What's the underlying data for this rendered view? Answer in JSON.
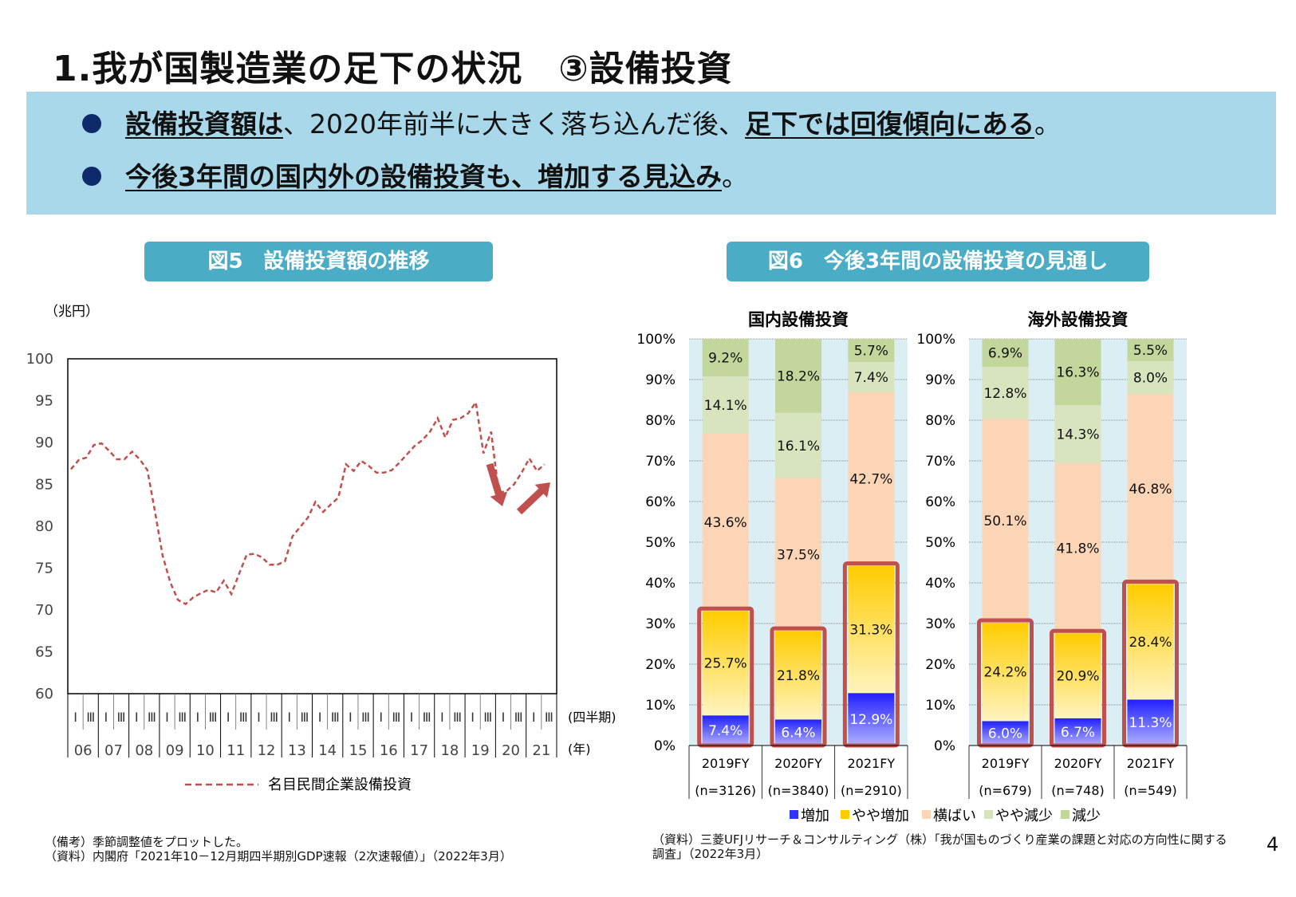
{
  "title": "1.我が国製造業の足下の状況　③設備投資",
  "bullets": [
    {
      "b1": "設備投資額は",
      "t1": "、2020年前半に大きく落ち込んだ後、",
      "b2": "足下では回復傾向にある",
      "t2": "。"
    },
    {
      "b1": "今後3年間の国内外の設備投資も、増加する見込み",
      "t1": "。",
      "b2": "",
      "t2": ""
    }
  ],
  "fig5": {
    "title": "図5　設備投資額の推移"
  },
  "fig6": {
    "title": "図6　今後3年間の設備投資の見通し"
  },
  "notes": {
    "left1": "（備考）季節調整値をプロットした。",
    "left2": "（資料）内閣府「2021年10－12月期四半期別GDP速報（2次速報値）」（2022年3月）",
    "right1": "（資料）三菱UFJリサーチ＆コンサルティング（株）「我が国ものづくり産業の課題と対応の方向性に関する",
    "right2": "調査」（2022年3月）"
  },
  "page_number": "4",
  "colors": {
    "banner": "#a8d8ea",
    "fig_title_bg": "#4bacc6",
    "line": "#c0504d",
    "highlight": "#c0504d",
    "increase": "#3333ff",
    "slight_increase": "#ffcc00",
    "flat": "#fbd5b5",
    "slight_decrease": "#d7e4bd",
    "decrease": "#c3d69b",
    "plot_bg": "#dbeef4"
  },
  "chart_data": [
    {
      "type": "line",
      "ylabel": "（兆円）",
      "ylim": [
        60,
        100
      ],
      "yticks": [
        60,
        65,
        70,
        75,
        80,
        85,
        90,
        95,
        100
      ],
      "quarter_labels": [
        "Ⅰ",
        "Ⅲ"
      ],
      "quarter_axis_label": "(四半期)",
      "year_labels": [
        "06",
        "07",
        "08",
        "09",
        "10",
        "11",
        "12",
        "13",
        "14",
        "15",
        "16",
        "17",
        "18",
        "19",
        "20",
        "21"
      ],
      "year_axis_label": "(年)",
      "series": [
        {
          "name": "名目民間企業設備投資",
          "values": [
            86.8,
            87.9,
            88.2,
            89.7,
            89.9,
            89.0,
            88.0,
            88.0,
            88.9,
            88.0,
            86.7,
            81.7,
            76.5,
            73.3,
            71.2,
            70.7,
            71.5,
            72.0,
            72.4,
            72.1,
            73.5,
            71.9,
            74.3,
            76.6,
            76.7,
            76.3,
            75.4,
            75.4,
            75.8,
            78.8,
            79.9,
            81.0,
            82.9,
            81.7,
            82.6,
            83.4,
            87.4,
            86.6,
            87.8,
            87.2,
            86.4,
            86.4,
            86.7,
            87.6,
            88.6,
            89.6,
            90.3,
            91.3,
            92.9,
            90.6,
            92.7,
            92.9,
            93.5,
            94.8,
            88.7,
            91.3,
            84.0,
            84.2,
            85.0,
            86.4,
            88.1,
            86.6,
            87.4
          ]
        }
      ],
      "annotations": [
        "down-arrow-2020",
        "up-arrow-2021"
      ]
    },
    {
      "type": "bar",
      "stacked": true,
      "title": "国内設備投資",
      "categories": [
        "2019FY",
        "2020FY",
        "2021FY"
      ],
      "sample_sizes": [
        "(n=3126)",
        "(n=3840)",
        "(n=2910)"
      ],
      "ylim": [
        0,
        100
      ],
      "yticks": [
        "0%",
        "10%",
        "20%",
        "30%",
        "40%",
        "50%",
        "60%",
        "70%",
        "80%",
        "90%",
        "100%"
      ],
      "series": [
        {
          "name": "増加",
          "values": [
            7.4,
            6.4,
            12.9
          ]
        },
        {
          "name": "やや増加",
          "values": [
            25.7,
            21.8,
            31.3
          ]
        },
        {
          "name": "横ばい",
          "values": [
            43.6,
            37.5,
            42.7
          ]
        },
        {
          "name": "やや減少",
          "values": [
            14.1,
            16.1,
            7.4
          ]
        },
        {
          "name": "減少",
          "values": [
            9.2,
            18.2,
            5.7
          ]
        }
      ]
    },
    {
      "type": "bar",
      "stacked": true,
      "title": "海外設備投資",
      "categories": [
        "2019FY",
        "2020FY",
        "2021FY"
      ],
      "sample_sizes": [
        "(n=679)",
        "(n=748)",
        "(n=549)"
      ],
      "ylim": [
        0,
        100
      ],
      "yticks": [
        "0%",
        "10%",
        "20%",
        "30%",
        "40%",
        "50%",
        "60%",
        "70%",
        "80%",
        "90%",
        "100%"
      ],
      "series": [
        {
          "name": "増加",
          "values": [
            6.0,
            6.7,
            11.3
          ]
        },
        {
          "name": "やや増加",
          "values": [
            24.2,
            20.9,
            28.4
          ]
        },
        {
          "name": "横ばい",
          "values": [
            50.1,
            41.8,
            46.8
          ]
        },
        {
          "name": "やや減少",
          "values": [
            12.8,
            14.3,
            8.0
          ]
        },
        {
          "name": "減少",
          "values": [
            6.9,
            16.3,
            5.5
          ]
        }
      ]
    }
  ]
}
